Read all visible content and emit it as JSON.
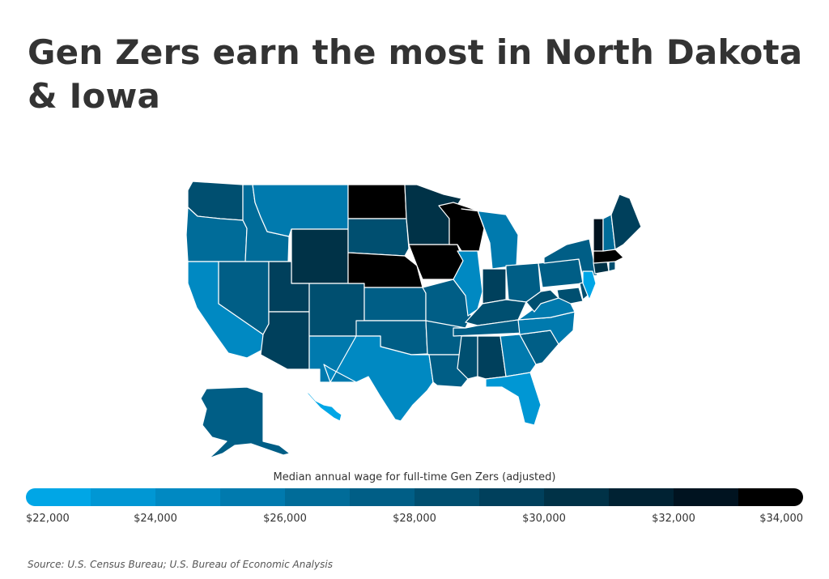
{
  "title": "Gen Zers earn the most in North Dakota & Iowa",
  "legend_title": "Median annual wage for full-time Gen Zers (adjusted)",
  "source": "Source:  U.S. Census Bureau; U.S. Bureau of Economic Analysis",
  "colors": {
    "scale": [
      "#00a6e6",
      "#0097d4",
      "#0089c2",
      "#007aae",
      "#006c99",
      "#005e86",
      "#004f70",
      "#00405c",
      "#003247",
      "#002233",
      "#001320",
      "#000000"
    ]
  },
  "chart_data": {
    "type": "choropleth",
    "title": "Gen Zers earn the most in North Dakota & Iowa",
    "legend_title": "Median annual wage for full-time Gen Zers (adjusted)",
    "scale": {
      "min": 22000,
      "max": 34000,
      "unit": "USD"
    },
    "tick_labels": [
      "$22,000",
      "$24,000",
      "$26,000",
      "$28,000",
      "$30,000",
      "$32,000",
      "$34,000"
    ],
    "tick_values": [
      22000,
      24000,
      26000,
      28000,
      30000,
      32000,
      34000
    ],
    "estimated_values": {
      "ND": 34000,
      "IA": 33500,
      "WI": 33500,
      "NE": 33000,
      "MA": 33000,
      "VT": 32500,
      "MN": 30500,
      "WY": 30000,
      "CT": 30000,
      "ME": 29500,
      "SD": 28500,
      "NV": 27500,
      "UT": 29000,
      "CO": 28500,
      "AZ": 29000,
      "WA": 28500,
      "AK": 27500,
      "IN": 29000,
      "KY": 28500,
      "AL": 29000,
      "MS": 28000,
      "LA": 27500,
      "OH": 27500,
      "PA": 27500,
      "NY": 27500,
      "WV": 28000,
      "MD": 28000,
      "DE": 28000,
      "RI": 28000,
      "NH": 26500,
      "KS": 27500,
      "MO": 27000,
      "OK": 27000,
      "AR": 27000,
      "TN": 27000,
      "SC": 27500,
      "OR": 26000,
      "ID": 26000,
      "MT": 25500,
      "NM": 25500,
      "MI": 25500,
      "NC": 25500,
      "VA": 25000,
      "GA": 25000,
      "IL": 24500,
      "TX": 24000,
      "CA": 24000,
      "FL": 23500,
      "NJ": 22500,
      "HI": 22000
    }
  }
}
